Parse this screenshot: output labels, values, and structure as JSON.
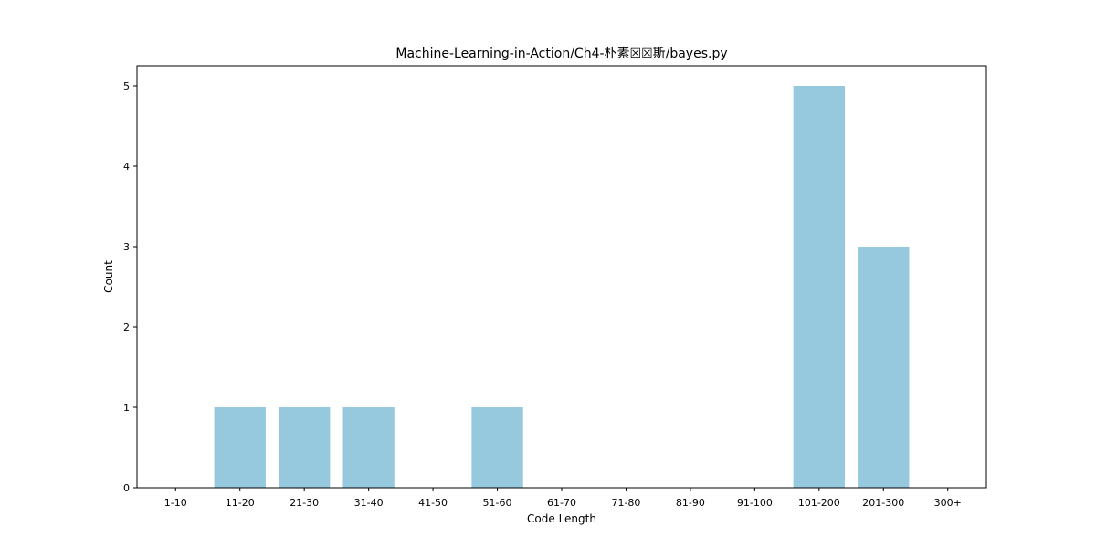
{
  "chart_data": {
    "type": "bar",
    "title": "Machine-Learning-in-Action/Ch4-朴素☒☒斯/bayes.py",
    "xlabel": "Code Length",
    "ylabel": "Count",
    "categories": [
      "1-10",
      "11-20",
      "21-30",
      "31-40",
      "41-50",
      "51-60",
      "61-70",
      "71-80",
      "81-90",
      "91-100",
      "101-200",
      "201-300",
      "300+"
    ],
    "values": [
      0,
      1,
      1,
      1,
      0,
      1,
      0,
      0,
      0,
      0,
      5,
      3,
      0
    ],
    "ylim": [
      0,
      5.25
    ],
    "yticks": [
      0,
      1,
      2,
      3,
      4,
      5
    ],
    "bar_color": "#96c9de",
    "grid": false,
    "legend": "none"
  }
}
